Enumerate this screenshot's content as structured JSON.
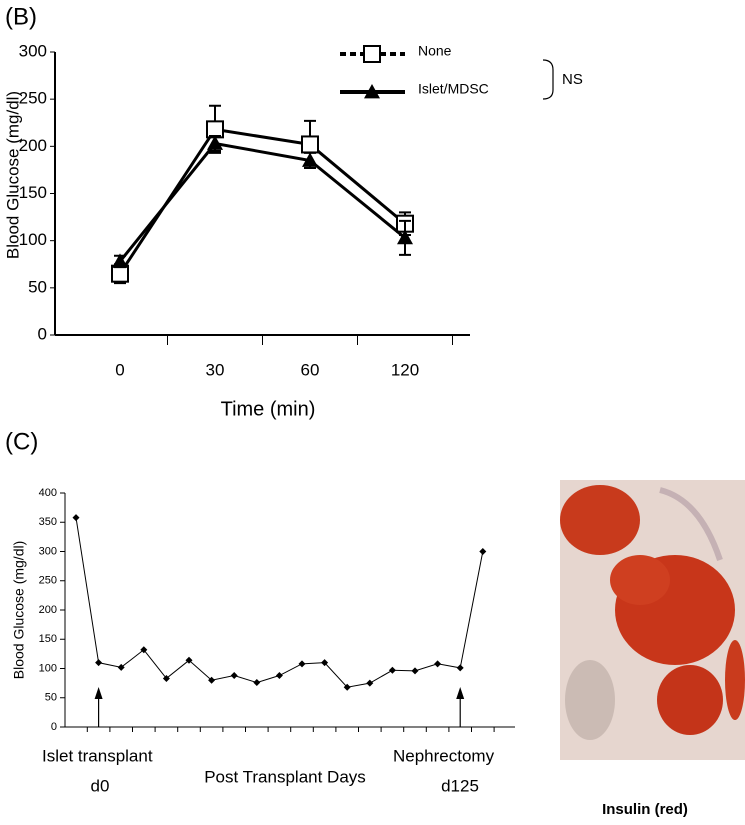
{
  "chart_data": [
    {
      "type": "line",
      "title": "(B)",
      "x_label": "Time (min)",
      "y_label": "Blood Glucose (mg/dl)",
      "categories": [
        "0",
        "30",
        "60",
        "120"
      ],
      "series": [
        {
          "name": "None",
          "color": "#000000",
          "marker": "square",
          "dash": true,
          "values": [
            65,
            218,
            202,
            118
          ],
          "errors": [
            10,
            25,
            25,
            12
          ]
        },
        {
          "name": "Islet/MDSC",
          "color": "#000000",
          "marker": "triangle",
          "dash": false,
          "values": [
            78,
            203,
            185,
            103
          ],
          "errors": [
            6,
            8,
            8,
            18
          ]
        }
      ],
      "ylim": [
        0,
        300
      ],
      "yticks": [
        0,
        50,
        100,
        150,
        200,
        250,
        300
      ],
      "annotation": "NS"
    },
    {
      "type": "line",
      "title": "(C)",
      "y_label": "Blood Glucose (mg/dl)",
      "x_label": "Post Transplant Days",
      "annotations": [
        "Islet transplant",
        "d0",
        "Nephrectomy",
        "d125"
      ],
      "categories": [
        null,
        null,
        null,
        null,
        null,
        null,
        null,
        null,
        null,
        null,
        null,
        null,
        null,
        null,
        null,
        null,
        null,
        null,
        null
      ],
      "series": [
        {
          "name": null,
          "color": "#000000",
          "marker": "diamond",
          "dash": false,
          "values": [
            358,
            110,
            102,
            132,
            83,
            114,
            80,
            88,
            76,
            88,
            108,
            110,
            68,
            75,
            97,
            96,
            108,
            101,
            300
          ]
        }
      ],
      "ylim": [
        0,
        400
      ],
      "yticks": [
        0,
        50,
        100,
        150,
        200,
        250,
        300,
        350,
        400
      ]
    }
  ],
  "image": {
    "caption": "Insulin (red)"
  }
}
